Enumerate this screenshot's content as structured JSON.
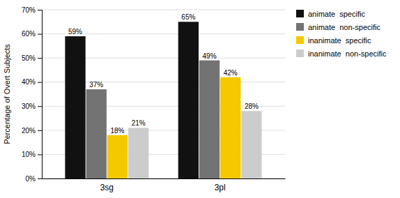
{
  "chart_data": {
    "type": "bar",
    "ylabel": "Percentage of Overt Subjects",
    "categories": [
      "3sg",
      "3pl"
    ],
    "series": [
      {
        "name": "animate  specific",
        "color": "#111111",
        "values": [
          59,
          65
        ],
        "value_labels": [
          "59%",
          "65%"
        ]
      },
      {
        "name": "animate  non-specific",
        "color": "#737373",
        "values": [
          37,
          49
        ],
        "value_labels": [
          "37%",
          "49%"
        ]
      },
      {
        "name": "inanimate  specific",
        "color": "#f5c800",
        "values": [
          18,
          42
        ],
        "value_labels": [
          "18%",
          "42%"
        ]
      },
      {
        "name": "inanimate  non-specific",
        "color": "#cccccc",
        "values": [
          21,
          28
        ],
        "value_labels": [
          "21%",
          "28%"
        ]
      }
    ],
    "ylim": [
      0,
      70
    ],
    "yticks": [
      {
        "value": 0,
        "label": "0%"
      },
      {
        "value": 10,
        "label": "10%"
      },
      {
        "value": 20,
        "label": "20%"
      },
      {
        "value": 30,
        "label": "30%"
      },
      {
        "value": 40,
        "label": "40%"
      },
      {
        "value": 50,
        "label": "50%"
      },
      {
        "value": 60,
        "label": "60%"
      },
      {
        "value": 70,
        "label": "70%"
      }
    ],
    "grid": true,
    "legend": "right",
    "data_labels": true
  }
}
